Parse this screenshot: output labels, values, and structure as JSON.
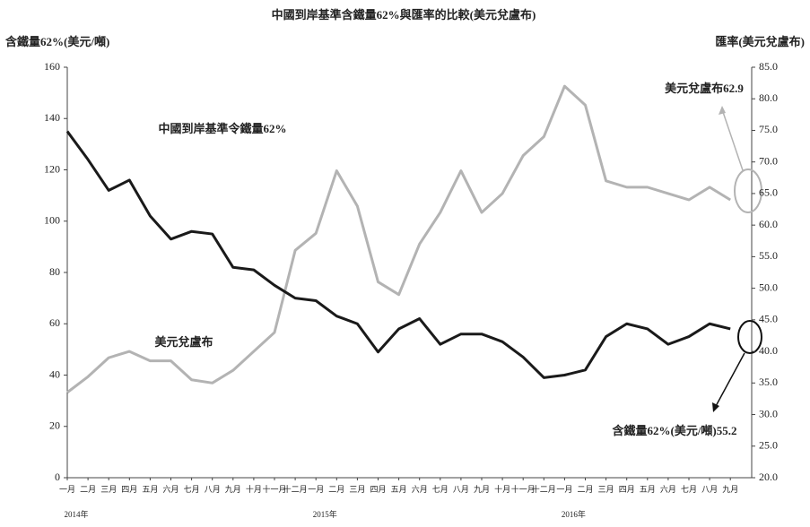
{
  "chart_data": {
    "type": "line",
    "title": "中國到岸基準含鐵量62%與匯率的比較(美元兌盧布)",
    "y_label": "含鐵量62%(美元/噸)",
    "y2_label": "匯率(美元兌盧布)",
    "categories": [
      "一月",
      "二月",
      "三月",
      "四月",
      "五月",
      "六月",
      "七月",
      "八月",
      "九月",
      "十月",
      "十一月",
      "十二月",
      "一月",
      "二月",
      "三月",
      "四月",
      "五月",
      "六月",
      "七月",
      "八月",
      "九月",
      "十月",
      "十一月",
      "十二月",
      "一月",
      "二月",
      "三月",
      "四月",
      "五月",
      "六月",
      "七月",
      "八月",
      "九月"
    ],
    "years": [
      "2014年",
      "2015年",
      "2016年"
    ],
    "series": [
      {
        "name": "中國到岸基準令鐵量62%",
        "color": "#1a1a1a",
        "axis": "y",
        "values": [
          135,
          124,
          112,
          116,
          102,
          93,
          96,
          95,
          82,
          81,
          75,
          70,
          69,
          63,
          60,
          49,
          58,
          62,
          52,
          56,
          56,
          53,
          47,
          39,
          40,
          42,
          55,
          60,
          58,
          52,
          55,
          60,
          58
        ]
      },
      {
        "name": "美元兌盧布",
        "color": "#b3b3b3",
        "axis": "y2",
        "values": [
          33.5,
          36,
          39,
          40,
          38.5,
          38.5,
          35.5,
          35,
          37,
          40,
          43,
          56,
          58.7,
          68.6,
          63,
          51,
          49,
          57,
          62,
          68.6,
          62,
          65,
          71,
          74,
          82,
          79,
          67,
          66,
          66,
          65,
          64,
          66,
          64
        ]
      }
    ],
    "annotations": [
      "美元兌盧布62.9",
      "含鐵量62%(美元/噸)55.2"
    ],
    "ylim": [
      0,
      160
    ],
    "yticks": [
      0,
      20,
      40,
      60,
      80,
      100,
      120,
      140,
      160
    ],
    "y2lim": [
      20,
      85
    ],
    "y2ticks": [
      {
        "value": 20,
        "label": "20.0"
      },
      {
        "value": 25,
        "label": "25.0"
      },
      {
        "value": 30,
        "label": "30.0"
      },
      {
        "value": 35,
        "label": "35.0"
      },
      {
        "value": 40,
        "label": "40.0"
      },
      {
        "value": 45,
        "label": "45.0"
      },
      {
        "value": 50,
        "label": "50.0"
      },
      {
        "value": 55,
        "label": "55.0"
      },
      {
        "value": 60,
        "label": "60.0"
      },
      {
        "value": 65,
        "label": "65.0"
      },
      {
        "value": 70,
        "label": "70.0"
      },
      {
        "value": 75,
        "label": "75.0"
      },
      {
        "value": 80,
        "label": "80.0"
      },
      {
        "value": 85,
        "label": "85.0"
      }
    ],
    "grid": false
  }
}
